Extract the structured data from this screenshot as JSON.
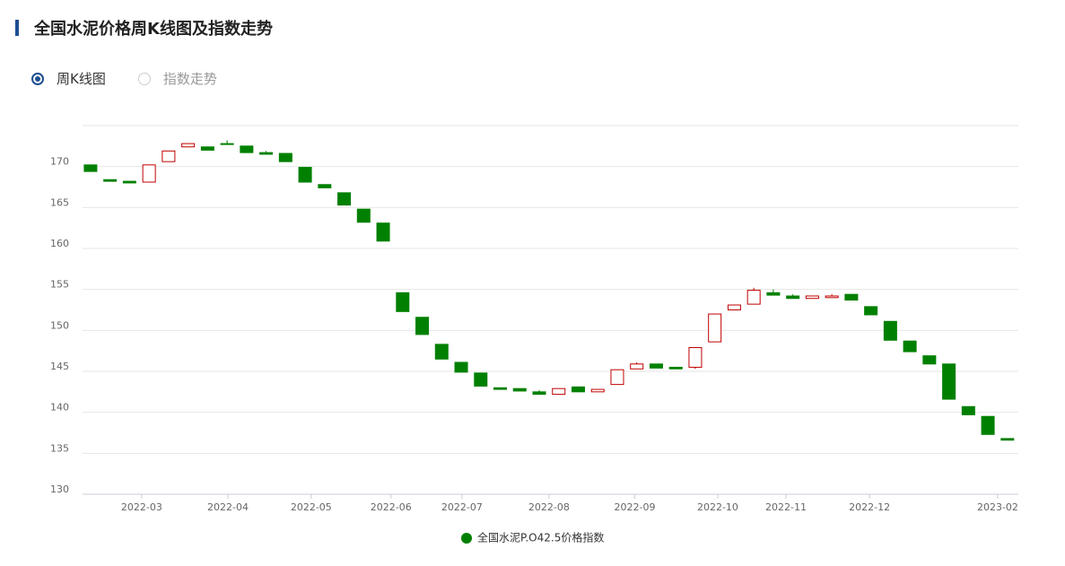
{
  "header": {
    "title": "全国水泥价格周K线图及指数走势"
  },
  "tabs": [
    {
      "label": "周K线图",
      "selected": true
    },
    {
      "label": "指数走势",
      "selected": false
    }
  ],
  "chart_data": {
    "type": "candlestick",
    "ylim": [
      130,
      175
    ],
    "yticks": [
      130,
      135,
      140,
      145,
      150,
      155,
      160,
      165,
      170
    ],
    "grid": true,
    "xlim": [
      -0.41,
      47.56
    ],
    "xticks": [
      {
        "value": 2.62,
        "label": "2022-03"
      },
      {
        "value": 7.04,
        "label": "2022-04"
      },
      {
        "value": 11.31,
        "label": "2022-05"
      },
      {
        "value": 15.4,
        "label": "2022-06"
      },
      {
        "value": 19.04,
        "label": "2022-07"
      },
      {
        "value": 23.5,
        "label": "2022-08"
      },
      {
        "value": 27.9,
        "label": "2022-09"
      },
      {
        "value": 32.15,
        "label": "2022-10"
      },
      {
        "value": 35.65,
        "label": "2022-11"
      },
      {
        "value": 39.93,
        "label": "2022-12"
      },
      {
        "value": 46.5,
        "label": "2023-02"
      }
    ],
    "legend": "bottom",
    "series": [
      {
        "name": "全国水泥P.O42.5价格指数",
        "color": "#008000",
        "up_color": "#c00000",
        "open": [
          170.2,
          168.4,
          168.2,
          168.1,
          170.6,
          172.4,
          172.4,
          172.8,
          172.5,
          171.7,
          171.6,
          169.9,
          167.8,
          166.8,
          164.8,
          163.1,
          154.6,
          151.6,
          148.3,
          146.1,
          144.8,
          143.0,
          142.9,
          142.5,
          142.2,
          143.1,
          142.5,
          143.4,
          145.3,
          145.9,
          145.5,
          145.5,
          148.6,
          152.5,
          153.2,
          154.6,
          154.2,
          153.9,
          154.0,
          154.4,
          152.9,
          151.1,
          148.7,
          146.9,
          145.9,
          140.7,
          139.5,
          136.8
        ],
        "close": [
          169.4,
          168.2,
          168.0,
          170.2,
          171.9,
          172.8,
          172.0,
          172.7,
          171.7,
          171.5,
          170.6,
          168.1,
          167.4,
          165.3,
          163.2,
          160.9,
          152.3,
          149.5,
          146.5,
          144.9,
          143.2,
          142.8,
          142.6,
          142.2,
          142.9,
          142.5,
          142.8,
          145.2,
          145.9,
          145.4,
          145.3,
          147.9,
          152.0,
          153.1,
          154.9,
          154.3,
          153.9,
          154.2,
          154.2,
          153.7,
          151.9,
          148.8,
          147.4,
          145.9,
          141.6,
          139.7,
          137.3,
          136.6
        ],
        "high": [
          170.2,
          168.4,
          168.2,
          170.2,
          171.9,
          172.8,
          172.4,
          173.2,
          172.5,
          171.9,
          171.6,
          169.9,
          167.8,
          166.8,
          164.8,
          163.1,
          154.6,
          151.6,
          148.3,
          146.1,
          144.8,
          143.0,
          142.9,
          142.7,
          142.9,
          143.1,
          142.8,
          145.2,
          146.1,
          145.9,
          145.5,
          147.9,
          152.0,
          153.1,
          155.2,
          155.0,
          154.4,
          154.2,
          154.4,
          154.4,
          152.9,
          151.1,
          148.7,
          146.9,
          145.9,
          140.7,
          139.5,
          136.8
        ],
        "low": [
          169.4,
          168.2,
          168.0,
          168.1,
          170.6,
          172.4,
          172.0,
          172.7,
          171.7,
          171.5,
          170.6,
          168.1,
          167.4,
          165.3,
          163.2,
          160.9,
          152.3,
          149.5,
          146.5,
          144.9,
          143.2,
          142.8,
          142.6,
          142.2,
          142.2,
          142.5,
          142.5,
          143.4,
          145.3,
          145.4,
          145.3,
          145.3,
          148.6,
          152.5,
          153.2,
          154.3,
          153.9,
          153.9,
          154.0,
          153.7,
          151.9,
          148.8,
          147.4,
          145.9,
          141.6,
          139.7,
          137.3,
          136.6
        ]
      }
    ]
  }
}
